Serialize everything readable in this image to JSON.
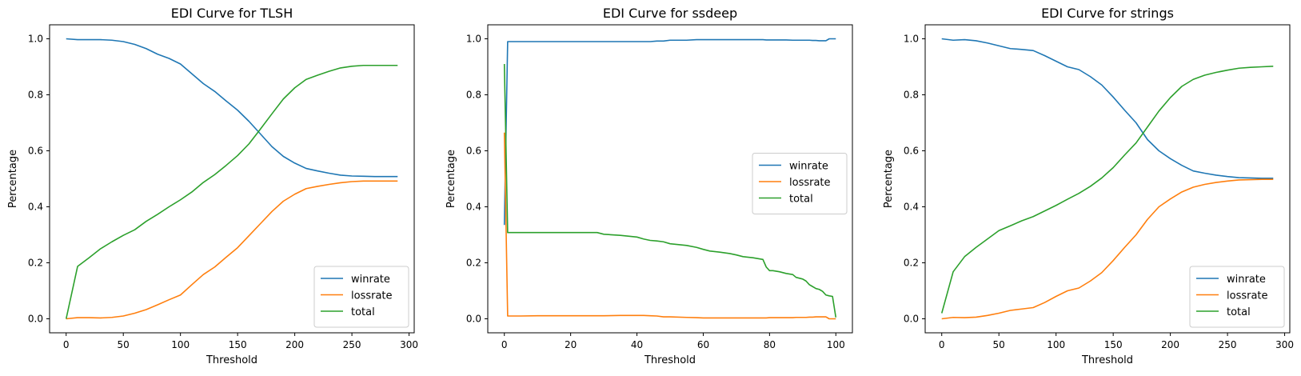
{
  "colors": {
    "winrate": "#1f77b4",
    "lossrate": "#ff7f0e",
    "total": "#2ca02c"
  },
  "chart_data": [
    {
      "type": "line",
      "title": "EDI Curve for TLSH",
      "xlabel": "Threshold",
      "ylabel": "Percentage",
      "xlim": [
        -14.5,
        304.5
      ],
      "ylim": [
        -0.05,
        1.05
      ],
      "xticks": [
        0,
        50,
        100,
        150,
        200,
        250,
        300
      ],
      "yticks": [
        0.0,
        0.2,
        0.4,
        0.6,
        0.8,
        1.0
      ],
      "legend": "lower right",
      "x": [
        0,
        10,
        20,
        30,
        40,
        50,
        60,
        70,
        80,
        90,
        100,
        110,
        120,
        130,
        140,
        150,
        160,
        170,
        180,
        190,
        200,
        210,
        220,
        230,
        240,
        250,
        260,
        270,
        280,
        290
      ],
      "series": [
        {
          "name": "winrate",
          "values": [
            1.0,
            0.997,
            0.997,
            0.997,
            0.995,
            0.99,
            0.98,
            0.965,
            0.945,
            0.93,
            0.91,
            0.875,
            0.84,
            0.812,
            0.778,
            0.745,
            0.705,
            0.66,
            0.615,
            0.58,
            0.556,
            0.537,
            0.528,
            0.52,
            0.513,
            0.51,
            0.509,
            0.508,
            0.508,
            0.508
          ]
        },
        {
          "name": "lossrate",
          "values": [
            0.0,
            0.004,
            0.004,
            0.003,
            0.005,
            0.01,
            0.02,
            0.033,
            0.05,
            0.068,
            0.085,
            0.122,
            0.158,
            0.185,
            0.22,
            0.254,
            0.297,
            0.34,
            0.383,
            0.42,
            0.445,
            0.465,
            0.473,
            0.48,
            0.486,
            0.49,
            0.492,
            0.492,
            0.492,
            0.492
          ]
        },
        {
          "name": "total",
          "values": [
            0.0,
            0.187,
            0.218,
            0.25,
            0.275,
            0.298,
            0.318,
            0.348,
            0.373,
            0.4,
            0.425,
            0.453,
            0.487,
            0.515,
            0.548,
            0.583,
            0.625,
            0.678,
            0.732,
            0.785,
            0.825,
            0.855,
            0.87,
            0.884,
            0.896,
            0.902,
            0.905,
            0.905,
            0.905,
            0.905
          ]
        }
      ]
    },
    {
      "type": "line",
      "title": "EDI Curve for ssdeep",
      "xlabel": "Threshold",
      "ylabel": "Percentage",
      "xlim": [
        -5,
        105
      ],
      "ylim": [
        -0.05,
        1.05
      ],
      "xticks": [
        0,
        20,
        40,
        60,
        80,
        100
      ],
      "yticks": [
        0.0,
        0.2,
        0.4,
        0.6,
        0.8,
        1.0
      ],
      "legend": "center right",
      "x": [
        0,
        1,
        2,
        5,
        10,
        15,
        20,
        25,
        28,
        30,
        35,
        40,
        42,
        44,
        46,
        48,
        50,
        55,
        58,
        60,
        62,
        65,
        68,
        70,
        72,
        75,
        78,
        79,
        80,
        81,
        83,
        85,
        87,
        88,
        90,
        91,
        92,
        93,
        94,
        95,
        96,
        97,
        98,
        99,
        100
      ],
      "series": [
        {
          "name": "winrate",
          "values": [
            0.335,
            0.99,
            0.99,
            0.99,
            0.99,
            0.99,
            0.99,
            0.99,
            0.99,
            0.99,
            0.99,
            0.99,
            0.99,
            0.99,
            0.992,
            0.992,
            0.995,
            0.995,
            0.997,
            0.997,
            0.997,
            0.997,
            0.997,
            0.997,
            0.997,
            0.997,
            0.997,
            0.996,
            0.996,
            0.996,
            0.996,
            0.996,
            0.995,
            0.995,
            0.995,
            0.995,
            0.995,
            0.994,
            0.994,
            0.993,
            0.993,
            0.993,
            1.0,
            1.0,
            1.0
          ]
        },
        {
          "name": "lossrate",
          "values": [
            0.665,
            0.01,
            0.01,
            0.01,
            0.011,
            0.011,
            0.011,
            0.011,
            0.011,
            0.011,
            0.012,
            0.012,
            0.012,
            0.011,
            0.01,
            0.007,
            0.007,
            0.005,
            0.004,
            0.003,
            0.003,
            0.003,
            0.003,
            0.003,
            0.003,
            0.003,
            0.003,
            0.003,
            0.004,
            0.004,
            0.004,
            0.004,
            0.004,
            0.005,
            0.005,
            0.005,
            0.006,
            0.006,
            0.007,
            0.007,
            0.007,
            0.007,
            0.0,
            0.0,
            0.0
          ]
        },
        {
          "name": "total",
          "values": [
            0.91,
            0.308,
            0.308,
            0.308,
            0.308,
            0.308,
            0.308,
            0.308,
            0.308,
            0.302,
            0.298,
            0.292,
            0.285,
            0.28,
            0.278,
            0.275,
            0.268,
            0.262,
            0.255,
            0.248,
            0.242,
            0.238,
            0.233,
            0.228,
            0.222,
            0.218,
            0.212,
            0.185,
            0.172,
            0.172,
            0.168,
            0.162,
            0.158,
            0.148,
            0.142,
            0.135,
            0.122,
            0.115,
            0.108,
            0.105,
            0.098,
            0.085,
            0.082,
            0.08,
            0.005
          ]
        }
      ]
    },
    {
      "type": "line",
      "title": "EDI Curve for strings",
      "xlabel": "Threshold",
      "ylabel": "Percentage",
      "xlim": [
        -14.5,
        304.5
      ],
      "ylim": [
        -0.05,
        1.05
      ],
      "xticks": [
        0,
        50,
        100,
        150,
        200,
        250,
        300
      ],
      "yticks": [
        0.0,
        0.2,
        0.4,
        0.6,
        0.8,
        1.0
      ],
      "legend": "lower right",
      "x": [
        0,
        10,
        20,
        30,
        40,
        50,
        60,
        70,
        80,
        90,
        100,
        110,
        120,
        130,
        140,
        150,
        160,
        170,
        180,
        190,
        200,
        210,
        220,
        230,
        240,
        250,
        260,
        270,
        280,
        290
      ],
      "series": [
        {
          "name": "winrate",
          "values": [
            1.0,
            0.995,
            0.997,
            0.993,
            0.985,
            0.975,
            0.965,
            0.962,
            0.958,
            0.94,
            0.92,
            0.9,
            0.89,
            0.865,
            0.835,
            0.792,
            0.745,
            0.7,
            0.64,
            0.6,
            0.572,
            0.548,
            0.528,
            0.52,
            0.513,
            0.508,
            0.504,
            0.503,
            0.502,
            0.502
          ]
        },
        {
          "name": "lossrate",
          "values": [
            0.0,
            0.005,
            0.004,
            0.006,
            0.012,
            0.02,
            0.03,
            0.035,
            0.04,
            0.058,
            0.08,
            0.1,
            0.11,
            0.135,
            0.165,
            0.208,
            0.255,
            0.3,
            0.355,
            0.4,
            0.428,
            0.453,
            0.47,
            0.48,
            0.487,
            0.492,
            0.496,
            0.497,
            0.498,
            0.498
          ]
        },
        {
          "name": "total",
          "values": [
            0.02,
            0.168,
            0.222,
            0.255,
            0.285,
            0.315,
            0.332,
            0.35,
            0.365,
            0.385,
            0.405,
            0.427,
            0.448,
            0.473,
            0.503,
            0.54,
            0.585,
            0.628,
            0.685,
            0.742,
            0.79,
            0.83,
            0.855,
            0.87,
            0.88,
            0.888,
            0.895,
            0.898,
            0.9,
            0.902
          ]
        }
      ]
    }
  ]
}
